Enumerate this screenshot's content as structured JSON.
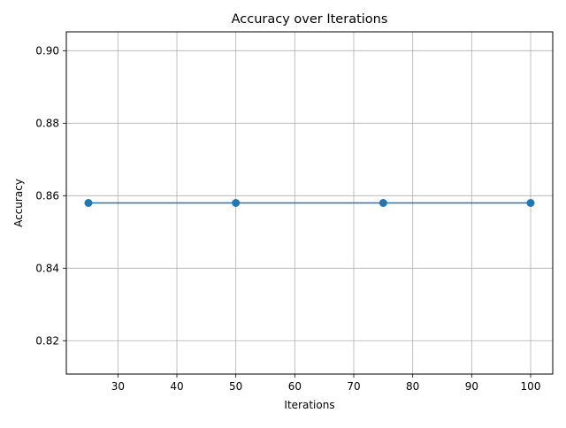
{
  "chart_data": {
    "type": "line",
    "title": "Accuracy over Iterations",
    "xlabel": "Iterations",
    "ylabel": "Accuracy",
    "xlim": [
      21.25,
      103.75
    ],
    "ylim": [
      0.8108,
      0.9052
    ],
    "x_ticks": [
      30,
      40,
      50,
      60,
      70,
      80,
      90,
      100
    ],
    "y_ticks": [
      0.82,
      0.84,
      0.86,
      0.88,
      0.9
    ],
    "x_tick_labels": [
      "30",
      "40",
      "50",
      "60",
      "70",
      "80",
      "90",
      "100"
    ],
    "y_tick_labels": [
      "0.82",
      "0.84",
      "0.86",
      "0.88",
      "0.90"
    ],
    "grid": true,
    "series": [
      {
        "x": [
          25,
          50,
          75,
          100
        ],
        "y": [
          0.858,
          0.858,
          0.858,
          0.858
        ],
        "color": "#1f77b4",
        "marker": "circle"
      }
    ]
  }
}
